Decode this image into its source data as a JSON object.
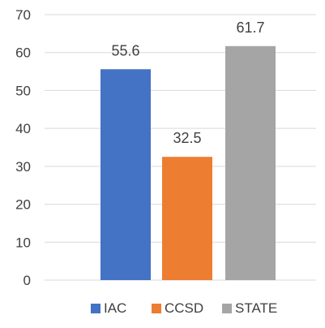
{
  "chart_data": {
    "type": "bar",
    "title": "",
    "xlabel": "",
    "ylabel": "",
    "ylim": [
      0,
      70
    ],
    "yticks": [
      "0",
      "10",
      "20",
      "30",
      "40",
      "50",
      "60",
      "70"
    ],
    "grid": true,
    "legend_position": "bottom",
    "series": [
      {
        "name": "IAC",
        "value": 55.6,
        "label": "55.6",
        "color": "#4472c4"
      },
      {
        "name": "CCSD",
        "value": 32.5,
        "label": "32.5",
        "color": "#ed7d31"
      },
      {
        "name": "STATE",
        "value": 61.7,
        "label": "61.7",
        "color": "#a5a5a5"
      }
    ],
    "gridline_color": "#d9d9d9"
  }
}
